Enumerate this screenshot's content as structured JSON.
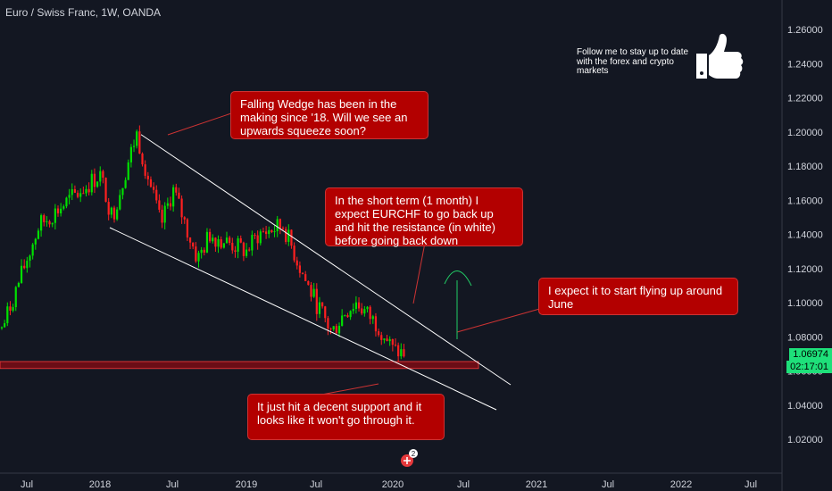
{
  "header": {
    "title": "Euro / Swiss Franc, 1W, OANDA"
  },
  "follow": {
    "text": "Follow me to stay up to date with the forex and crypto markets"
  },
  "callouts": {
    "wedge": "Falling Wedge has been in the making since '18. Will we see an upwards squeeze soon?",
    "short_term": "In the short term (1 month) I expect EURCHF to go back up and hit the resistance (in white) before going back down",
    "june": "I expect it to start flying up around June",
    "support": "It just hit a decent support and it looks like it won't go through it."
  },
  "price_axis": {
    "last_price": "1.06974",
    "countdown": "02:17:01"
  },
  "notification": {
    "count": "2"
  },
  "colors": {
    "background": "#131722",
    "up": "#00e000",
    "down": "#ff2020",
    "callout": "#b30000",
    "support_zone": "#6b0d16",
    "price_tag": "#1ee07a",
    "wedge_lines": "#ffffff"
  },
  "chart_data": {
    "type": "candlestick",
    "title": "Euro / Swiss Franc, 1W, OANDA",
    "y_ticks": [
      "1.26000",
      "1.24000",
      "1.22000",
      "1.20000",
      "1.18000",
      "1.16000",
      "1.14000",
      "1.12000",
      "1.10000",
      "1.08000",
      "1.06000",
      "1.04000",
      "1.02000"
    ],
    "x_ticks": [
      "Jul",
      "2018",
      "Jul",
      "2019",
      "Jul",
      "2020",
      "Jul",
      "2021",
      "Jul",
      "2022",
      "Jul"
    ],
    "ylim": [
      1.005,
      1.275
    ],
    "grid": false,
    "support_zone": [
      1.0635,
      1.0655
    ],
    "wedge_resistance": [
      {
        "date": "2018-04",
        "price": 1.2
      },
      {
        "date": "2021-07",
        "price": 1.06
      }
    ],
    "wedge_support": [
      {
        "date": "2018-02",
        "price": 1.144
      },
      {
        "date": "2021-06",
        "price": 1.041
      }
    ],
    "projection": {
      "from_price": 1.08,
      "to_price": 1.119
    },
    "key_points": [
      {
        "date": "2017-05",
        "price": 1.085
      },
      {
        "date": "2017-08",
        "price": 1.145
      },
      {
        "date": "2018-01",
        "price": 1.175
      },
      {
        "date": "2018-02",
        "price": 1.15
      },
      {
        "date": "2018-04",
        "price": 1.199
      },
      {
        "date": "2018-06",
        "price": 1.145
      },
      {
        "date": "2018-07",
        "price": 1.166
      },
      {
        "date": "2018-09",
        "price": 1.125
      },
      {
        "date": "2018-10",
        "price": 1.14
      },
      {
        "date": "2019-01",
        "price": 1.13
      },
      {
        "date": "2019-02",
        "price": 1.14
      },
      {
        "date": "2019-04",
        "price": 1.145
      },
      {
        "date": "2019-06",
        "price": 1.11
      },
      {
        "date": "2019-08",
        "price": 1.082
      },
      {
        "date": "2019-09",
        "price": 1.094
      },
      {
        "date": "2019-10",
        "price": 1.1
      },
      {
        "date": "2019-12",
        "price": 1.085
      },
      {
        "date": "2020-01",
        "price": 1.072
      },
      {
        "date": "2020-02",
        "price": 1.0697
      }
    ]
  }
}
